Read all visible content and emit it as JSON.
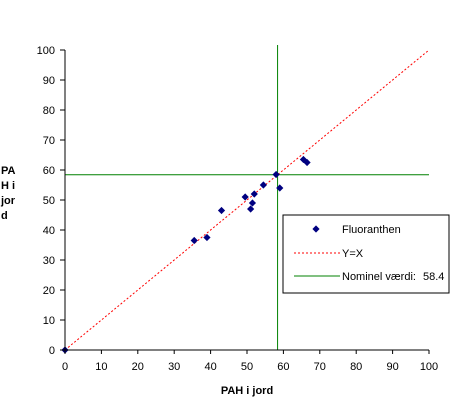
{
  "chart_data": {
    "type": "scatter",
    "title": "",
    "xlabel": "PAH i jord",
    "ylabel_lines": [
      "PA",
      "H i",
      "jor",
      "d"
    ],
    "xlim": [
      0,
      100
    ],
    "ylim": [
      0,
      100
    ],
    "x_ticks": [
      0,
      10,
      20,
      30,
      40,
      50,
      60,
      70,
      80,
      90,
      100
    ],
    "y_ticks": [
      0,
      10,
      20,
      30,
      40,
      50,
      60,
      70,
      80,
      90,
      100
    ],
    "grid": false,
    "series": [
      {
        "name": "Fluoranthen",
        "kind": "points",
        "marker": "diamond",
        "color": "#000080",
        "points": [
          [
            0,
            0
          ],
          [
            35.5,
            36.5
          ],
          [
            39,
            37.5
          ],
          [
            43,
            46.5
          ],
          [
            49.5,
            51
          ],
          [
            51,
            47
          ],
          [
            51.5,
            49
          ],
          [
            52,
            52
          ],
          [
            54.5,
            55
          ],
          [
            58,
            58.5
          ],
          [
            59,
            54
          ],
          [
            65.5,
            63.5
          ],
          [
            66.5,
            62.5
          ]
        ]
      },
      {
        "name": "Y=X",
        "kind": "identity-line",
        "color": "#ff0000",
        "dash": true
      },
      {
        "name": "Nominel værdi:",
        "value": 58.4,
        "value_text": "58.4",
        "kind": "reference-lines",
        "color": "#008000"
      }
    ],
    "legend_position": "right"
  }
}
